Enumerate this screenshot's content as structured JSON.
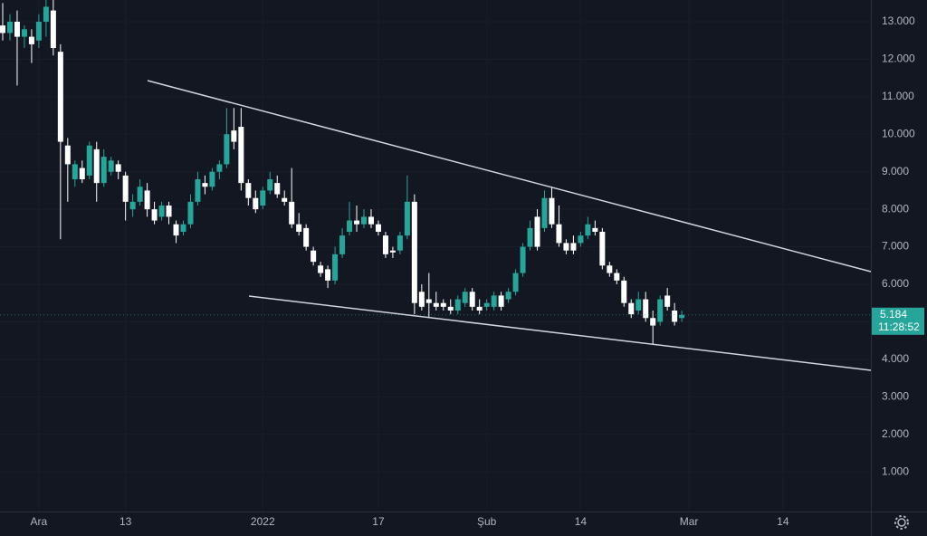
{
  "chart_data": {
    "type": "candlestick",
    "categories": [
      null,
      null,
      null,
      null,
      null,
      "Ara",
      null,
      null,
      null,
      null,
      null,
      null,
      null,
      null,
      null,
      null,
      null,
      "13",
      null,
      null,
      null,
      null,
      null,
      null,
      null,
      null,
      null,
      null,
      null,
      null,
      null,
      null,
      null,
      null,
      null,
      null,
      "2022",
      null,
      null,
      null,
      null,
      null,
      null,
      null,
      null,
      null,
      null,
      null,
      null,
      null,
      null,
      null,
      "17",
      null,
      null,
      null,
      null,
      null,
      null,
      null,
      null,
      null,
      null,
      null,
      null,
      null,
      null,
      "Şub",
      null,
      null,
      null,
      null,
      null,
      null,
      null,
      null,
      null,
      null,
      null,
      null,
      "14",
      null,
      null,
      null,
      null,
      null,
      null,
      null,
      null,
      null,
      null,
      null,
      null,
      null,
      null,
      "Mar",
      null,
      null,
      null,
      null,
      null,
      null,
      null,
      null,
      null,
      null,
      null,
      null,
      "14",
      null,
      null,
      null,
      null,
      null,
      null,
      null,
      null,
      null,
      null,
      null,
      null
    ],
    "open": [
      12.9,
      12.7,
      13.0,
      12.6,
      12.6,
      12.5,
      13.0,
      13.3,
      12.2,
      9.7,
      8.8,
      9.1,
      8.9,
      9.6,
      8.7,
      9.0,
      9.2,
      8.9,
      8.0,
      8.2,
      8.5,
      8.0,
      7.8,
      8.1,
      7.6,
      7.4,
      7.6,
      8.2,
      8.7,
      8.6,
      9.0,
      9.2,
      10.1,
      10.2,
      8.7,
      8.3,
      8.1,
      8.5,
      8.7,
      8.3,
      8.2,
      7.6,
      7.5,
      6.9,
      6.5,
      6.4,
      6.1,
      6.8,
      7.4,
      7.7,
      7.6,
      7.8,
      7.6,
      7.3,
      6.9,
      6.9,
      7.3,
      8.2,
      5.8,
      5.6,
      5.5,
      5.5,
      5.4,
      5.3,
      5.5,
      5.8,
      5.4,
      5.4,
      5.4,
      5.7,
      5.6,
      5.8,
      6.3,
      7.0,
      7.8,
      7.5,
      8.3,
      7.6,
      7.1,
      7.1,
      7.1,
      7.3,
      7.5,
      7.4,
      6.5,
      6.3,
      6.1,
      5.5,
      5.3,
      5.6,
      5.1,
      5.0,
      5.7,
      5.3,
      5.1,
      null,
      null,
      null,
      null,
      null,
      null,
      null,
      null,
      null,
      null,
      null,
      null,
      null,
      null,
      null,
      null,
      null,
      null,
      null,
      null,
      null,
      null,
      null,
      null,
      null,
      null
    ],
    "high": [
      13.5,
      13.2,
      13.3,
      12.9,
      12.8,
      13.2,
      13.6,
      13.6,
      12.4,
      9.9,
      9.3,
      9.3,
      9.8,
      9.8,
      9.6,
      9.4,
      9.3,
      9.0,
      8.4,
      8.8,
      8.7,
      8.2,
      8.2,
      8.2,
      7.7,
      7.7,
      8.4,
      9.0,
      8.9,
      9.1,
      9.3,
      10.7,
      10.7,
      10.7,
      8.8,
      8.5,
      8.6,
      9.0,
      8.9,
      8.5,
      9.1,
      7.9,
      7.6,
      7.0,
      6.6,
      6.5,
      7.0,
      7.5,
      8.2,
      8.1,
      8.0,
      8.0,
      7.7,
      7.4,
      7.0,
      7.4,
      8.9,
      8.4,
      6.0,
      6.3,
      5.8,
      5.6,
      5.6,
      5.7,
      5.9,
      5.9,
      5.6,
      5.6,
      5.8,
      5.8,
      5.9,
      6.4,
      7.1,
      7.7,
      8.0,
      8.5,
      8.6,
      8.1,
      7.2,
      7.3,
      7.4,
      7.8,
      7.7,
      7.5,
      6.6,
      6.4,
      6.2,
      5.6,
      5.8,
      5.8,
      5.3,
      5.7,
      5.9,
      5.5,
      5.3,
      null,
      null,
      null,
      null,
      null,
      null,
      null,
      null,
      null,
      null,
      null,
      null,
      null,
      null,
      null,
      null,
      null,
      null,
      null,
      null,
      null,
      null,
      null,
      null,
      null,
      null
    ],
    "low": [
      12.5,
      12.5,
      11.3,
      12.3,
      11.9,
      12.3,
      12.6,
      12.1,
      7.2,
      8.2,
      8.6,
      8.7,
      8.8,
      8.2,
      8.6,
      8.9,
      8.8,
      7.7,
      7.8,
      8.1,
      7.8,
      7.6,
      7.7,
      7.6,
      7.1,
      7.3,
      7.5,
      8.1,
      8.4,
      8.5,
      8.8,
      9.1,
      9.6,
      8.5,
      8.1,
      7.9,
      8.0,
      8.4,
      8.3,
      8.1,
      7.5,
      7.3,
      6.9,
      6.5,
      6.2,
      5.9,
      6.0,
      6.7,
      7.3,
      7.4,
      7.5,
      7.5,
      7.3,
      6.7,
      6.7,
      6.8,
      7.2,
      5.2,
      5.3,
      5.1,
      5.3,
      5.3,
      5.2,
      5.2,
      5.4,
      5.3,
      5.2,
      5.3,
      5.3,
      5.3,
      5.5,
      5.7,
      6.2,
      6.9,
      6.9,
      7.4,
      7.5,
      7.0,
      6.8,
      6.8,
      7.0,
      7.2,
      7.3,
      6.4,
      6.2,
      6.0,
      5.4,
      5.1,
      5.2,
      5.0,
      4.4,
      4.9,
      5.3,
      4.9,
      5.0,
      null,
      null,
      null,
      null,
      null,
      null,
      null,
      null,
      null,
      null,
      null,
      null,
      null,
      null,
      null,
      null,
      null,
      null,
      null,
      null,
      null,
      null,
      null,
      null,
      null,
      null
    ],
    "close": [
      12.7,
      13.0,
      12.6,
      12.8,
      12.4,
      13.0,
      13.4,
      12.3,
      9.8,
      9.2,
      9.2,
      8.8,
      9.7,
      8.7,
      9.4,
      9.3,
      9.0,
      8.2,
      8.2,
      8.6,
      8.0,
      7.7,
      8.1,
      7.8,
      7.3,
      7.6,
      8.2,
      8.8,
      8.6,
      9.0,
      9.2,
      10.0,
      9.8,
      8.7,
      8.3,
      8.0,
      8.5,
      8.8,
      8.4,
      8.2,
      7.6,
      7.4,
      7.0,
      6.6,
      6.3,
      6.1,
      6.8,
      7.3,
      7.7,
      7.6,
      7.8,
      7.6,
      7.4,
      6.8,
      6.85,
      7.3,
      8.2,
      5.5,
      5.4,
      5.5,
      5.4,
      5.4,
      5.3,
      5.6,
      5.8,
      5.4,
      5.3,
      5.5,
      5.7,
      5.4,
      5.8,
      6.3,
      7.0,
      7.5,
      7.0,
      8.3,
      7.6,
      7.1,
      6.9,
      6.9,
      7.3,
      7.6,
      7.4,
      6.5,
      6.3,
      6.1,
      5.5,
      5.2,
      5.6,
      5.1,
      4.9,
      5.6,
      5.4,
      5.0,
      5.184,
      null,
      null,
      null,
      null,
      null,
      null,
      null,
      null,
      null,
      null,
      null,
      null,
      null,
      null,
      null,
      null,
      null,
      null,
      null,
      null,
      null,
      null,
      null,
      null,
      null,
      null
    ],
    "up_color": "#26a69a",
    "down_color": "#ffffff",
    "last_price": 5.184,
    "countdown": "11:28:52",
    "ylim": [
      -0.06,
      13.58
    ],
    "yticks": [
      {
        "value": 1,
        "label": "1.000"
      },
      {
        "value": 2,
        "label": "2.000"
      },
      {
        "value": 3,
        "label": "3.000"
      },
      {
        "value": 4,
        "label": "4.000"
      },
      {
        "value": 5,
        "label": "5.000"
      },
      {
        "value": 6,
        "label": "6.000"
      },
      {
        "value": 7,
        "label": "7.000"
      },
      {
        "value": 8,
        "label": "8.000"
      },
      {
        "value": 9,
        "label": "9.000"
      },
      {
        "value": 10,
        "label": "10.000"
      },
      {
        "value": 11,
        "label": "11.000"
      },
      {
        "value": 12,
        "label": "12.000"
      },
      {
        "value": 13,
        "label": "13.000"
      }
    ],
    "grid": true
  }
}
